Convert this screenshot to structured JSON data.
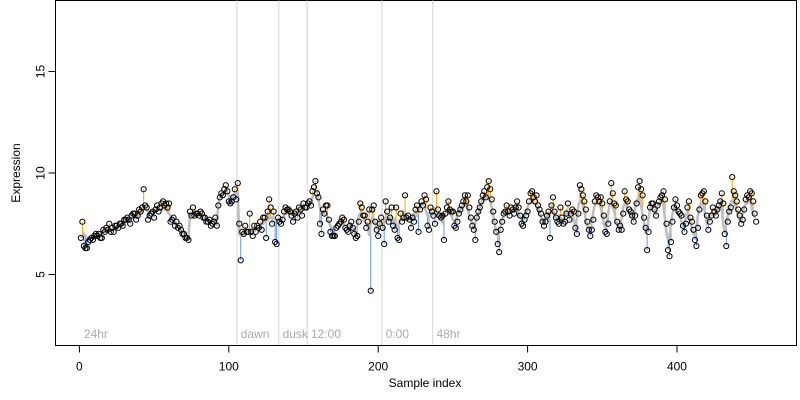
{
  "chart_data": {
    "type": "scatter",
    "title": "",
    "xlabel": "Sample index",
    "ylabel": "Expression",
    "xlim": [
      -16,
      480
    ],
    "ylim": [
      1.5,
      18.5
    ],
    "x_ticks": [
      0,
      100,
      200,
      300,
      400
    ],
    "y_ticks": [
      5,
      10,
      15
    ],
    "grid": false,
    "colors": {
      "above_fit": "#FFA500",
      "below_fit": "#6495ED",
      "fit_line": "#BEBEBE",
      "separator": "#D3D3D3",
      "segment_label": "#AAAAAA",
      "point_edge": "#000000"
    },
    "segments": [
      {
        "label": "24hr",
        "start": 1
      },
      {
        "label": "dawn",
        "start": 106
      },
      {
        "label": "dusk",
        "start": 134
      },
      {
        "label": "12:00",
        "start": 153
      },
      {
        "label": "0:00",
        "start": 203
      },
      {
        "label": "48hr",
        "start": 237
      }
    ],
    "series": [
      {
        "values": [
          6.8,
          7.6,
          6.4,
          6.3,
          6.3,
          6.6,
          6.7,
          6.8,
          6.7,
          6.9,
          7.0,
          6.9,
          7.0,
          6.8,
          6.8,
          7.2,
          7.1,
          7.3,
          7.2,
          7.5,
          7.1,
          7.3,
          7.1,
          7.4,
          7.4,
          7.3,
          7.5,
          7.5,
          7.4,
          7.7,
          7.7,
          7.8,
          7.7,
          7.5,
          7.9,
          8.0,
          8.0,
          7.7,
          7.9,
          8.2,
          8.1,
          8.3,
          9.2,
          8.4,
          8.3,
          7.7,
          7.9,
          8.0,
          8.1,
          7.8,
          8.2,
          8.4,
          8.1,
          8.3,
          8.5,
          8.6,
          8.4,
          8.5,
          8.3,
          8.5,
          7.6,
          7.7,
          7.8,
          7.4,
          7.6,
          7.3,
          7.4,
          7.2,
          7.0,
          7.0,
          6.8,
          6.8,
          6.7,
          8.1,
          7.9,
          8.3,
          7.9,
          8.0,
          8.0,
          7.9,
          8.1,
          8.0,
          7.8,
          7.8,
          7.6,
          7.6,
          7.7,
          7.4,
          7.5,
          7.6,
          7.8,
          7.4,
          8.4,
          8.8,
          9.0,
          8.9,
          9.2,
          9.4,
          9.1,
          8.6,
          8.5,
          8.6,
          8.8,
          9.2,
          8.7,
          9.5,
          7.5,
          5.7,
          7.1,
          7.0,
          7.4,
          7.1,
          7.1,
          8.0,
          7.1,
          6.9,
          7.4,
          7.1,
          7.4,
          7.3,
          7.6,
          7.2,
          7.8,
          7.8,
          6.8,
          8.1,
          8.7,
          8.3,
          7.5,
          8.1,
          6.6,
          6.5,
          7.8,
          7.6,
          7.5,
          7.7,
          8.1,
          8.3,
          8.2,
          8.2,
          8.1,
          7.9,
          7.6,
          8.0,
          8.1,
          7.8,
          8.3,
          8.2,
          7.9,
          8.5,
          8.3,
          8.3,
          8.5,
          8.6,
          8.4,
          9.1,
          9.3,
          9.6,
          9.0,
          8.8,
          7.5,
          7.0,
          8.2,
          8.0,
          8.4,
          8.4,
          7.7,
          7.1,
          6.9,
          6.9,
          6.9,
          7.3,
          7.4,
          7.5,
          7.6,
          7.8,
          7.7,
          7.3,
          7.2,
          7.1,
          7.4,
          7.6,
          7.3,
          7.0,
          6.8,
          6.9,
          7.6,
          8.5,
          8.3,
          7.9,
          7.9,
          7.3,
          7.6,
          8.2,
          4.2,
          8.2,
          8.4,
          7.6,
          7.2,
          6.9,
          7.5,
          7.8,
          7.3,
          6.5,
          8.6,
          8.1,
          7.6,
          7.8,
          8.3,
          7.4,
          7.2,
          8.3,
          6.8,
          6.7,
          8.0,
          7.6,
          7.8,
          8.9,
          7.8,
          7.9,
          7.7,
          7.3,
          7.8,
          7.6,
          8.2,
          8.4,
          7.1,
          8.2,
          8.6,
          8.4,
          8.9,
          8.7,
          7.4,
          7.2,
          8.3,
          8.1,
          7.9,
          7.5,
          9.1,
          8.2,
          7.9,
          7.8,
          7.9,
          6.7,
          8.0,
          8.3,
          8.6,
          8.2,
          8.1,
          8.1,
          7.4,
          7.3,
          7.6,
          8.0,
          8.2,
          8.4,
          8.6,
          8.9,
          8.6,
          8.9,
          8.3,
          7.8,
          7.4,
          7.2,
          6.7,
          7.8,
          8.1,
          8.3,
          8.6,
          8.9,
          9.1,
          8.8,
          9.3,
          9.6,
          9.2,
          8.7,
          8.1,
          7.6,
          7.1,
          6.5,
          6.1,
          7.2,
          7.6,
          8.0,
          8.1,
          8.4,
          8.1,
          7.9,
          8.3,
          8.2,
          8.0,
          8.3,
          8.6,
          8.3,
          7.9,
          7.5,
          7.4,
          7.7,
          7.9,
          8.1,
          8.6,
          9.0,
          9.1,
          8.8,
          8.6,
          8.9,
          8.4,
          8.2,
          8.0,
          7.6,
          7.4,
          7.6,
          7.9,
          8.1,
          6.8,
          8.4,
          8.8,
          8.1,
          7.8,
          7.6,
          7.5,
          8.3,
          7.8,
          7.5,
          7.6,
          8.0,
          8.5,
          7.7,
          8.0,
          8.2,
          8.1,
          7.3,
          7.0,
          8.0,
          9.4,
          9.2,
          8.9,
          8.6,
          8.2,
          7.6,
          7.2,
          6.9,
          7.2,
          7.7,
          8.6,
          8.9,
          8.8,
          8.6,
          8.8,
          8.5,
          7.9,
          7.1,
          7.0,
          7.5,
          8.6,
          9.5,
          9.0,
          8.5,
          8.4,
          7.6,
          7.2,
          7.4,
          7.2,
          8.0,
          9.1,
          8.7,
          8.6,
          8.2,
          8.1,
          7.9,
          7.6,
          7.9,
          8.5,
          9.3,
          9.6,
          9.2,
          8.9,
          7.8,
          7.3,
          6.2,
          7.1,
          8.3,
          8.5,
          8.5,
          8.2,
          7.9,
          8.4,
          8.6,
          8.8,
          8.9,
          9.1,
          8.7,
          7.5,
          6.2,
          5.9,
          6.6,
          7.6,
          8.3,
          8.7,
          8.4,
          8.1,
          8.0,
          7.9,
          7.4,
          7.1,
          7.5,
          8.3,
          8.6,
          7.8,
          7.6,
          7.2,
          6.7,
          6.4,
          7.3,
          8.2,
          8.9,
          9.0,
          9.1,
          8.6,
          7.9,
          7.2,
          7.6,
          7.9,
          8.3,
          8.1,
          7.9,
          8.2,
          8.4,
          8.6,
          9.0,
          8.5,
          7.0,
          6.4,
          7.6,
          8.1,
          8.3,
          9.8,
          9.1,
          8.9,
          8.6,
          8.2,
          7.9,
          7.5,
          7.7,
          8.2,
          8.7,
          8.9,
          8.8,
          9.1,
          9.0,
          8.6,
          8.0,
          7.6
        ],
        "fitted": [
          6.8,
          6.9,
          7.0,
          6.9,
          6.8,
          6.8,
          6.8,
          6.8,
          6.9,
          6.9,
          6.9,
          7.0,
          7.0,
          7.0,
          7.0,
          7.1,
          7.1,
          7.1,
          7.2,
          7.2,
          7.2,
          7.2,
          7.3,
          7.3,
          7.3,
          7.4,
          7.4,
          7.5,
          7.5,
          7.5,
          7.6,
          7.6,
          7.7,
          7.7,
          7.8,
          7.8,
          7.8,
          7.9,
          7.9,
          8.0,
          8.0,
          8.1,
          8.2,
          8.2,
          8.2,
          8.1,
          8.1,
          8.1,
          8.1,
          8.1,
          8.2,
          8.2,
          8.2,
          8.2,
          8.2,
          8.2,
          8.2,
          8.2,
          8.1,
          8.0,
          7.9,
          7.8,
          7.7,
          7.6,
          7.5,
          7.4,
          7.3,
          7.2,
          7.1,
          7.0,
          6.9,
          6.8,
          6.8,
          8.0,
          8.0,
          8.0,
          8.0,
          8.0,
          8.0,
          8.0,
          7.9,
          7.9,
          7.8,
          7.8,
          7.7,
          7.7,
          7.6,
          7.6,
          7.6,
          7.5,
          7.5,
          7.5,
          8.5,
          8.8,
          8.9,
          9.0,
          9.1,
          9.1,
          9.0,
          8.9,
          8.8,
          8.8,
          8.9,
          9.0,
          9.0,
          9.1,
          7.0,
          6.9,
          7.0,
          7.0,
          7.1,
          7.1,
          7.2,
          7.2,
          7.2,
          7.2,
          7.3,
          7.3,
          7.3,
          7.4,
          7.4,
          7.5,
          7.5,
          7.6,
          7.6,
          7.7,
          7.8,
          7.8,
          7.8,
          7.8,
          7.7,
          7.7,
          7.7,
          7.7,
          7.8,
          7.8,
          7.9,
          8.0,
          8.0,
          8.0,
          8.0,
          8.0,
          8.0,
          8.0,
          8.0,
          8.1,
          8.1,
          8.1,
          8.2,
          8.2,
          8.3,
          8.3,
          8.4,
          8.5,
          8.6,
          8.8,
          9.0,
          9.1,
          9.1,
          8.7,
          8.3,
          8.0,
          8.0,
          8.0,
          8.0,
          7.8,
          7.6,
          7.4,
          7.3,
          7.2,
          7.3,
          7.4,
          7.5,
          7.6,
          7.6,
          7.6,
          7.5,
          7.4,
          7.4,
          7.4,
          7.4,
          7.4,
          7.3,
          7.2,
          7.1,
          7.4,
          7.9,
          8.0,
          7.9,
          7.8,
          7.6,
          7.5,
          7.4,
          6.9,
          7.5,
          7.8,
          7.7,
          7.5,
          7.3,
          7.4,
          7.5,
          7.4,
          7.2,
          7.6,
          7.8,
          7.8,
          7.8,
          7.8,
          7.7,
          7.6,
          7.7,
          7.4,
          7.3,
          7.6,
          7.7,
          7.8,
          8.1,
          8.0,
          7.9,
          7.8,
          7.7,
          7.8,
          7.9,
          8.0,
          8.0,
          7.9,
          8.1,
          8.3,
          8.4,
          8.5,
          8.4,
          8.1,
          7.9,
          8.0,
          8.1,
          8.0,
          7.9,
          8.2,
          8.1,
          8.0,
          7.9,
          7.8,
          7.6,
          7.8,
          8.0,
          8.1,
          8.1,
          8.0,
          7.9,
          7.7,
          7.6,
          7.7,
          7.9,
          8.1,
          8.2,
          8.3,
          8.4,
          8.4,
          8.4,
          8.2,
          7.9,
          7.7,
          7.5,
          7.3,
          7.5,
          7.8,
          8.0,
          8.3,
          8.5,
          8.7,
          8.7,
          8.8,
          8.9,
          8.8,
          8.6,
          8.3,
          7.9,
          7.5,
          7.1,
          6.9,
          7.1,
          7.4,
          7.7,
          7.9,
          8.1,
          8.0,
          8.0,
          8.1,
          8.1,
          8.1,
          8.2,
          8.3,
          8.2,
          8.0,
          7.8,
          7.7,
          7.8,
          7.9,
          8.1,
          8.3,
          8.5,
          8.6,
          8.6,
          8.5,
          8.5,
          8.4,
          8.2,
          8.0,
          7.8,
          7.6,
          7.6,
          7.8,
          7.9,
          7.6,
          8.0,
          8.3,
          8.1,
          7.9,
          7.8,
          7.7,
          7.9,
          7.8,
          7.7,
          7.7,
          7.9,
          8.1,
          7.9,
          8.0,
          8.1,
          8.0,
          7.6,
          7.4,
          7.8,
          8.4,
          8.6,
          8.6,
          8.4,
          8.1,
          7.7,
          7.4,
          7.2,
          7.3,
          7.6,
          8.1,
          8.4,
          8.5,
          8.5,
          8.5,
          8.3,
          7.9,
          7.5,
          7.3,
          7.5,
          8.0,
          8.5,
          8.5,
          8.3,
          8.1,
          7.7,
          7.4,
          7.4,
          7.4,
          7.8,
          8.3,
          8.5,
          8.4,
          8.2,
          8.0,
          7.9,
          7.8,
          7.9,
          8.2,
          8.6,
          8.8,
          8.7,
          8.4,
          7.9,
          7.5,
          7.0,
          7.2,
          7.8,
          8.2,
          8.3,
          8.2,
          8.1,
          8.2,
          8.4,
          8.5,
          8.6,
          8.7,
          8.4,
          7.7,
          7.0,
          6.7,
          6.9,
          7.5,
          8.0,
          8.3,
          8.3,
          8.1,
          8.0,
          7.9,
          7.6,
          7.4,
          7.5,
          7.9,
          8.1,
          7.8,
          7.6,
          7.3,
          7.0,
          6.9,
          7.3,
          7.9,
          8.3,
          8.5,
          8.5,
          8.3,
          7.9,
          7.5,
          7.6,
          7.8,
          8.0,
          8.0,
          7.9,
          8.0,
          8.2,
          8.3,
          8.5,
          8.2,
          7.4,
          7.1,
          7.5,
          7.9,
          8.1,
          8.6,
          8.6,
          8.5,
          8.4,
          8.1,
          7.9,
          7.7,
          7.8,
          8.0,
          8.3,
          8.5,
          8.5,
          8.6,
          8.6,
          8.3,
          8.0,
          7.8
        ]
      }
    ]
  }
}
